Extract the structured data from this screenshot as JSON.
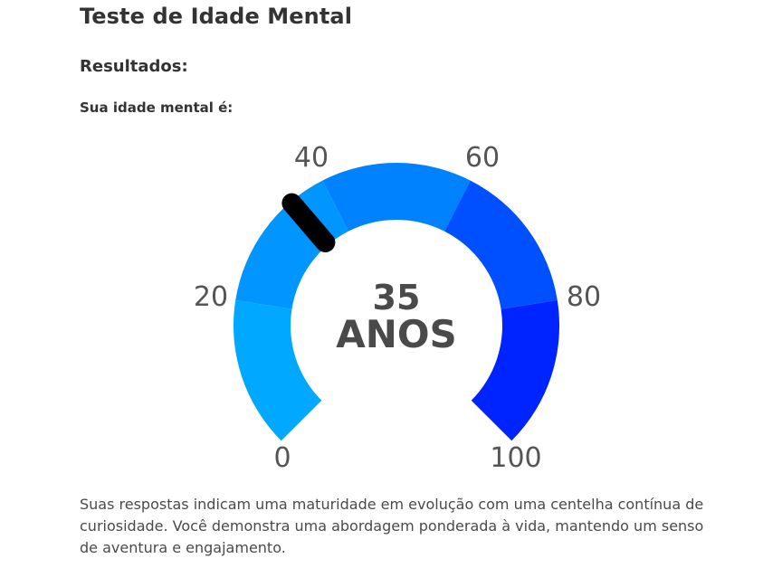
{
  "header": {
    "title": "Teste de Idade Mental",
    "results_heading": "Resultados:",
    "age_label": "Sua idade mental é:"
  },
  "gauge": {
    "value": 35,
    "value_text": "35",
    "unit_text": "ANOS",
    "min": 0,
    "max": 100,
    "ticks": [
      "0",
      "20",
      "40",
      "60",
      "80",
      "100"
    ],
    "segment_colors": [
      "#00a8ff",
      "#0095ff",
      "#0082ff",
      "#0050ff",
      "#0024ff"
    ],
    "needle_color": "#000000"
  },
  "description": "Suas respostas indicam uma maturidade em evolução com uma centelha contínua de curiosidade. Você demonstra uma abordagem ponderada à vida, mantendo um senso de aventura e engajamento."
}
